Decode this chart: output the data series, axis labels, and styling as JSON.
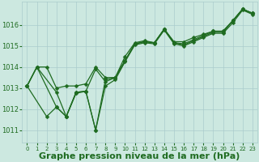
{
  "background_color": "#cce8e0",
  "grid_color": "#aacccc",
  "line_color": "#1e6b20",
  "xlabel": "Graphe pression niveau de la mer (hPa)",
  "xlabel_fontsize": 8,
  "ylim": [
    1010.4,
    1017.1
  ],
  "xlim": [
    -0.5,
    23.5
  ],
  "yticks": [
    1011,
    1012,
    1013,
    1014,
    1015,
    1016
  ],
  "xticks": [
    0,
    1,
    2,
    3,
    4,
    5,
    6,
    7,
    8,
    9,
    10,
    11,
    12,
    13,
    14,
    15,
    16,
    17,
    18,
    19,
    20,
    21,
    22,
    23
  ],
  "series": {
    "s1_x": [
      0,
      1,
      3,
      4,
      5,
      6,
      7,
      8,
      9,
      10,
      11,
      12,
      13,
      14,
      15,
      16,
      17,
      18,
      19,
      20,
      21,
      22,
      23
    ],
    "s1_y": [
      1013.1,
      1014.0,
      1012.1,
      1011.65,
      1012.8,
      1012.85,
      1011.0,
      1013.4,
      1013.5,
      1014.3,
      1015.1,
      1015.2,
      1015.15,
      1015.8,
      1015.15,
      1015.05,
      1015.25,
      1015.45,
      1015.65,
      1015.65,
      1016.2,
      1016.75,
      1016.55
    ],
    "s2_x": [
      0,
      1,
      3,
      4,
      5,
      6,
      7,
      8,
      9,
      10,
      11,
      12,
      13,
      14,
      15,
      16,
      17,
      18,
      19,
      20,
      21,
      22,
      23
    ],
    "s2_y": [
      1013.1,
      1014.0,
      1012.8,
      1011.65,
      1012.8,
      1012.85,
      1013.9,
      1013.3,
      1013.5,
      1014.3,
      1015.1,
      1015.2,
      1015.15,
      1015.8,
      1015.15,
      1015.1,
      1015.3,
      1015.5,
      1015.7,
      1015.7,
      1016.2,
      1016.75,
      1016.55
    ],
    "s3_x": [
      0,
      1,
      2,
      3,
      4,
      5,
      6,
      7,
      8,
      9,
      10,
      11,
      12,
      13,
      14,
      15,
      16,
      17,
      18,
      19,
      20,
      21,
      22,
      23
    ],
    "s3_y": [
      1013.1,
      1014.0,
      1014.0,
      1013.0,
      1013.1,
      1013.1,
      1013.2,
      1014.0,
      1013.5,
      1013.5,
      1014.5,
      1015.15,
      1015.25,
      1015.15,
      1015.8,
      1015.2,
      1015.2,
      1015.4,
      1015.55,
      1015.7,
      1015.7,
      1016.2,
      1016.75,
      1016.55
    ],
    "s4_x": [
      0,
      2,
      3,
      4,
      5,
      6,
      7,
      8,
      9,
      10,
      11,
      12,
      13,
      14,
      15,
      16,
      17,
      18,
      19,
      20,
      21,
      22,
      23
    ],
    "s4_y": [
      1013.1,
      1011.65,
      1012.1,
      1011.65,
      1012.75,
      1012.85,
      1011.0,
      1013.1,
      1013.4,
      1014.25,
      1015.05,
      1015.15,
      1015.1,
      1015.75,
      1015.1,
      1015.0,
      1015.2,
      1015.4,
      1015.6,
      1015.6,
      1016.1,
      1016.7,
      1016.5
    ]
  },
  "tick_color": "#1e6b20",
  "tick_fontsize": 6,
  "xtick_fontsize": 5
}
